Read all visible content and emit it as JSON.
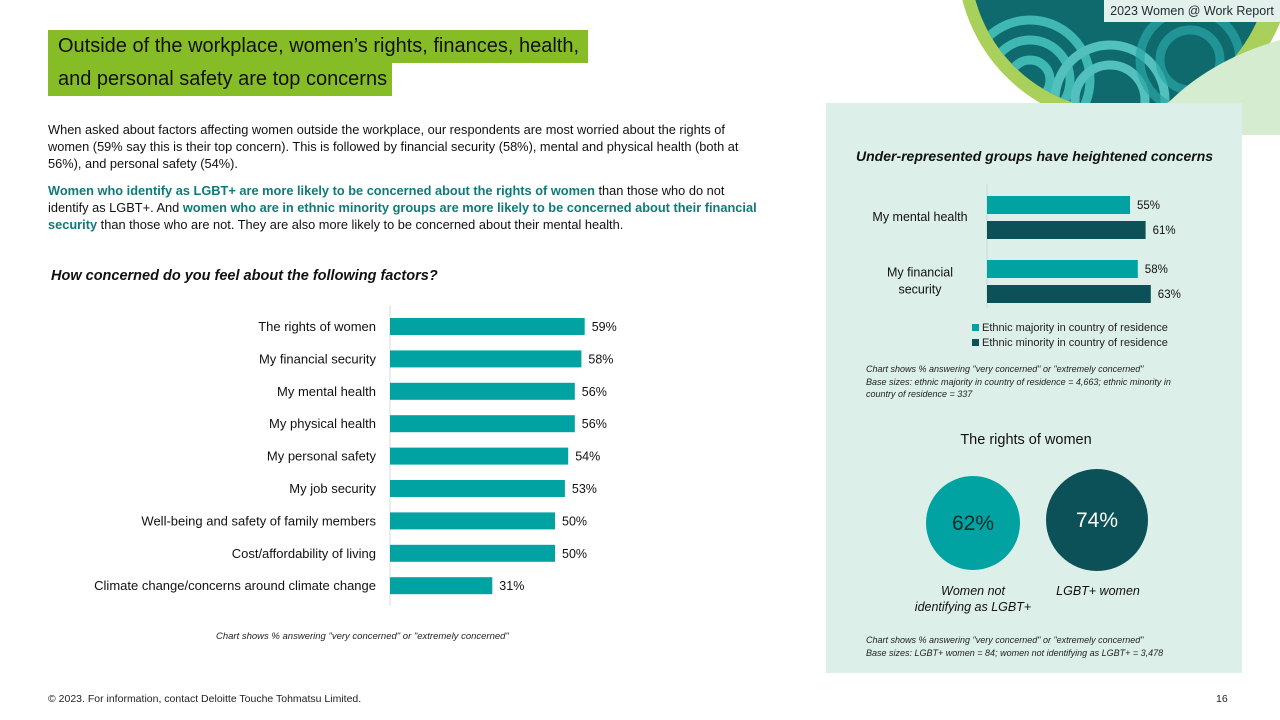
{
  "header": {
    "report_tag": "2023 Women @ Work Report"
  },
  "title": {
    "line1": "Outside of the workplace, women’s rights, finances, health,",
    "line2": "and personal safety are top concerns"
  },
  "intro": {
    "para1": "When asked about factors affecting women outside the workplace, our respondents are most worried about the rights of women (59% say this is their top concern). This is followed by financial security (58%), mental and physical health (both at 56%), and personal safety (54%).",
    "para2": {
      "hl1": "Women who identify as LGBT+ are more likely to be concerned about the rights of women",
      "t1": " than those who do not identify as LGBT+. And ",
      "hl2": "women who are in ethnic minority groups are more likely to be concerned about their financial security",
      "t2": " than those who are not. They are also more likely to be concerned about their mental health."
    }
  },
  "main_chart": {
    "question": "How concerned do you feel about the following factors?",
    "note": "Chart shows % answering \"very concerned\" or \"extremely concerned\""
  },
  "side_chart": {
    "title": "Under-represented groups have heightened concerns",
    "note_line1": "Chart shows % answering \"very concerned\" or \"extremely concerned\"",
    "note_line2": "Base sizes: ethnic majority in country of residence = 4,663; ethnic minority in",
    "note_line3": "country of residence = 337"
  },
  "rights": {
    "title": "The rights of women",
    "caption_left_1": "Women not",
    "caption_left_2": "identifying as LGBT+",
    "caption_right": "LGBT+ women",
    "note_line1": "Chart shows % answering \"very concerned\" or \"extremely concerned\"",
    "note_line2": "Base sizes: LGBT+ women = 84; women not identifying as LGBT+ = 3,478"
  },
  "chart_data": [
    {
      "type": "bar",
      "orientation": "horizontal",
      "title": "How concerned do you feel about the following factors?",
      "categories": [
        "The rights of women",
        "My financial security",
        "My mental health",
        "My physical health",
        "My personal safety",
        "My job security",
        "Well-being and safety of family members",
        "Cost/affordability of living",
        "Climate change/concerns around climate change"
      ],
      "values": [
        59,
        58,
        56,
        56,
        54,
        53,
        50,
        50,
        31
      ],
      "value_labels": [
        "59%",
        "58%",
        "56%",
        "56%",
        "54%",
        "53%",
        "50%",
        "50%",
        "31%"
      ],
      "unit": "%",
      "xlim": [
        0,
        100
      ],
      "color": "#00a3a1",
      "grid": false
    },
    {
      "type": "bar",
      "orientation": "horizontal",
      "title": "Under-represented groups have heightened concerns",
      "categories": [
        "My mental health",
        "My financial security"
      ],
      "series": [
        {
          "name": "Ethnic majority in country of residence",
          "values": [
            55,
            58
          ],
          "labels": [
            "55%",
            "58%"
          ],
          "color": "#00a3a1"
        },
        {
          "name": "Ethnic minority in country of residence",
          "values": [
            61,
            63
          ],
          "labels": [
            "61%",
            "63%"
          ],
          "color": "#0b5157"
        }
      ],
      "unit": "%",
      "xlim": [
        0,
        100
      ],
      "legend_position": "bottom",
      "grid": false
    },
    {
      "type": "bubble",
      "title": "The rights of women",
      "categories": [
        "Women not identifying as LGBT+",
        "LGBT+ women"
      ],
      "values": [
        62,
        74
      ],
      "value_labels": [
        "62%",
        "74%"
      ],
      "colors": [
        "#00a3a1",
        "#0b5157"
      ]
    }
  ],
  "footer": {
    "copyright": "© 2023. For information, contact Deloitte Touche Tohmatsu Limited.",
    "page": "16"
  }
}
